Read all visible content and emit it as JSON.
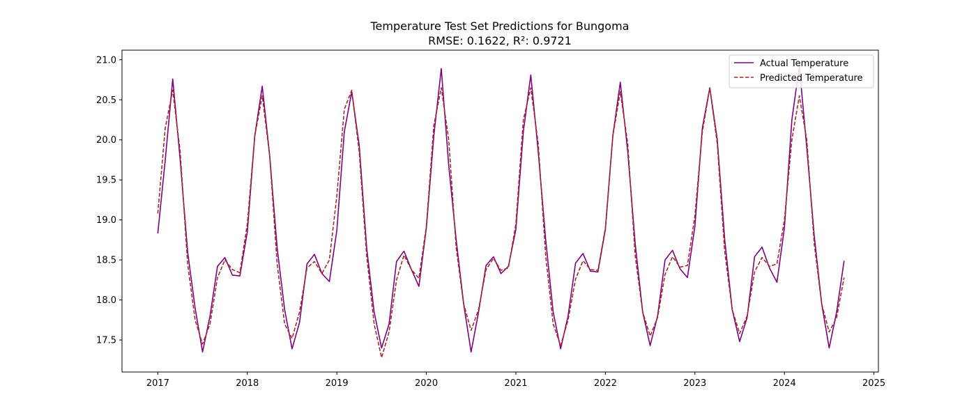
{
  "chart_data": {
    "type": "line",
    "title": "Temperature Test Set Predictions for Bungoma",
    "subtitle": "RMSE: 0.1622, R²: 0.9721",
    "xlabel": "",
    "ylabel": "",
    "xlim": [
      2016.6,
      2025.05
    ],
    "ylim": [
      17.1,
      21.12
    ],
    "x_ticks": [
      "2017",
      "2018",
      "2019",
      "2020",
      "2021",
      "2022",
      "2023",
      "2024",
      "2025"
    ],
    "y_ticks": [
      "17.5",
      "18.0",
      "18.5",
      "19.0",
      "19.5",
      "20.0",
      "20.5",
      "21.0"
    ],
    "grid": false,
    "legend_position": "top-right",
    "x_start_year": 2017,
    "series": [
      {
        "name": "Actual Temperature",
        "color": "#800080",
        "style": "solid",
        "values": [
          18.83,
          19.75,
          20.76,
          19.75,
          18.6,
          17.9,
          17.35,
          17.8,
          18.42,
          18.53,
          18.31,
          18.3,
          18.85,
          20.05,
          20.67,
          19.8,
          18.65,
          17.88,
          17.39,
          17.72,
          18.45,
          18.57,
          18.33,
          18.23,
          18.87,
          20.1,
          20.6,
          19.93,
          18.65,
          17.85,
          17.4,
          17.7,
          18.48,
          18.61,
          18.38,
          18.17,
          18.9,
          20.05,
          20.89,
          19.68,
          18.75,
          17.95,
          17.35,
          17.85,
          18.43,
          18.54,
          18.33,
          18.42,
          18.88,
          20.1,
          20.81,
          19.85,
          18.75,
          17.85,
          17.39,
          17.8,
          18.46,
          18.58,
          18.36,
          18.35,
          18.88,
          20.05,
          20.72,
          19.85,
          18.7,
          17.85,
          17.43,
          17.8,
          18.5,
          18.62,
          18.39,
          18.28,
          18.92,
          20.15,
          20.65,
          20.0,
          18.75,
          17.88,
          17.48,
          17.78,
          18.54,
          18.66,
          18.4,
          18.22,
          18.9,
          20.25,
          20.92,
          19.9,
          18.8,
          17.95,
          17.4,
          17.85,
          18.49
        ]
      },
      {
        "name": "Predicted Temperature",
        "color": "#a52a2a",
        "style": "dashed",
        "values": [
          19.08,
          20.15,
          20.62,
          19.85,
          18.45,
          17.75,
          17.45,
          17.7,
          18.28,
          18.5,
          18.38,
          18.34,
          18.95,
          20.05,
          20.55,
          19.8,
          18.45,
          17.7,
          17.52,
          17.85,
          18.4,
          18.48,
          18.33,
          18.5,
          19.3,
          20.38,
          20.62,
          19.85,
          18.55,
          17.7,
          17.28,
          17.6,
          18.25,
          18.56,
          18.38,
          18.27,
          18.92,
          20.18,
          20.65,
          20.0,
          18.65,
          17.95,
          17.62,
          17.88,
          18.38,
          18.52,
          18.37,
          18.4,
          18.95,
          20.25,
          20.65,
          19.95,
          18.55,
          17.7,
          17.43,
          17.75,
          18.26,
          18.49,
          18.38,
          18.37,
          18.9,
          20.05,
          20.6,
          19.95,
          18.55,
          17.85,
          17.55,
          17.78,
          18.32,
          18.54,
          18.41,
          18.43,
          19.05,
          20.1,
          20.65,
          19.95,
          18.6,
          17.88,
          17.58,
          17.8,
          18.35,
          18.53,
          18.42,
          18.45,
          19.0,
          20.0,
          20.55,
          20.0,
          18.7,
          17.95,
          17.6,
          17.78,
          18.28
        ]
      }
    ]
  }
}
